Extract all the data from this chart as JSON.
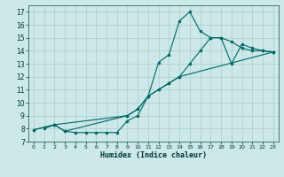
{
  "xlabel": "Humidex (Indice chaleur)",
  "bg_color": "#cce8e8",
  "line_color": "#006666",
  "grid_color": "#aacccc",
  "grid_minor_color": "#bbdddd",
  "xlim": [
    -0.5,
    23.5
  ],
  "ylim": [
    7,
    17.5
  ],
  "xticks": [
    0,
    1,
    2,
    3,
    4,
    5,
    6,
    7,
    8,
    9,
    10,
    11,
    12,
    13,
    14,
    15,
    16,
    17,
    18,
    19,
    20,
    21,
    22,
    23
  ],
  "yticks": [
    7,
    8,
    9,
    10,
    11,
    12,
    13,
    14,
    15,
    16,
    17
  ],
  "line1_x": [
    1,
    2,
    3,
    4,
    5,
    6,
    7,
    8,
    9,
    10,
    11,
    12,
    13,
    14,
    15,
    16,
    17,
    18,
    19,
    20,
    21,
    22,
    23
  ],
  "line1_y": [
    8.0,
    8.3,
    7.8,
    7.7,
    7.7,
    7.7,
    7.7,
    7.7,
    8.6,
    9.0,
    10.5,
    13.1,
    13.7,
    16.3,
    17.0,
    15.5,
    15.0,
    15.0,
    14.7,
    14.2,
    14.0,
    14.0,
    13.9
  ],
  "line2_x": [
    0,
    2,
    3,
    9,
    10,
    11,
    12,
    13,
    14,
    15,
    16,
    17,
    18,
    19,
    20,
    21,
    22,
    23
  ],
  "line2_y": [
    7.9,
    8.3,
    7.8,
    9.0,
    9.5,
    10.5,
    11.0,
    11.5,
    12.0,
    13.0,
    14.0,
    15.0,
    15.0,
    13.0,
    14.5,
    14.2,
    14.0,
    13.9
  ],
  "line3_x": [
    0,
    2,
    9,
    10,
    11,
    12,
    13,
    14,
    23
  ],
  "line3_y": [
    7.9,
    8.3,
    9.0,
    9.5,
    10.5,
    11.0,
    11.5,
    12.0,
    13.9
  ]
}
